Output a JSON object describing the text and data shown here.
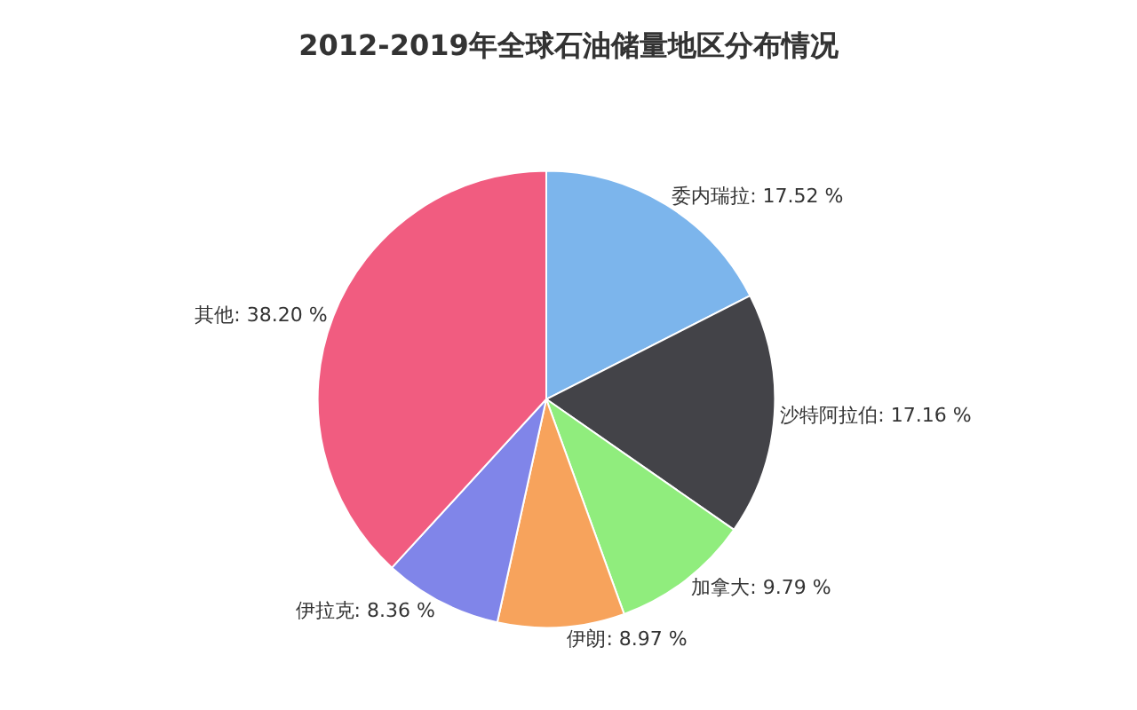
{
  "chart_data": {
    "type": "pie",
    "title": "2012-2019年全球石油储量地区分布情况",
    "categories": [
      "委内瑞拉",
      "沙特阿拉伯",
      "加拿大",
      "伊朗",
      "伊拉克",
      "其他"
    ],
    "values": [
      17.52,
      17.16,
      9.79,
      8.97,
      8.36,
      38.2
    ],
    "colors": [
      "#7cb5ec",
      "#434348",
      "#90ed7d",
      "#f7a35c",
      "#8085e9",
      "#f15c80"
    ],
    "value_labels": [
      "17.52 %",
      "17.16 %",
      "9.79 %",
      "8.97 %",
      "8.36 %",
      "38.20 %"
    ],
    "legend": false
  }
}
